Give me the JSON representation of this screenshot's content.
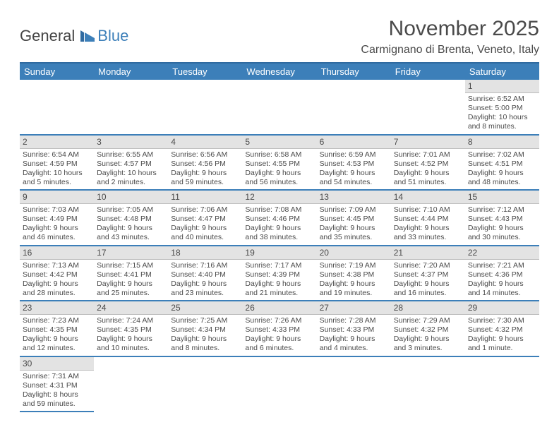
{
  "brand": {
    "part1": "General",
    "part2": "Blue"
  },
  "title": "November 2025",
  "location": "Carmignano di Brenta, Veneto, Italy",
  "headers": [
    "Sunday",
    "Monday",
    "Tuesday",
    "Wednesday",
    "Thursday",
    "Friday",
    "Saturday"
  ],
  "colors": {
    "accent": "#3c7fb9",
    "header_bg": "#3c7fb9",
    "daynum_bg": "#e3e3e3"
  },
  "weeks": [
    [
      null,
      null,
      null,
      null,
      null,
      null,
      {
        "n": "1",
        "sr": "6:52 AM",
        "ss": "5:00 PM",
        "dl": "10 hours and 8 minutes."
      }
    ],
    [
      {
        "n": "2",
        "sr": "6:54 AM",
        "ss": "4:59 PM",
        "dl": "10 hours and 5 minutes."
      },
      {
        "n": "3",
        "sr": "6:55 AM",
        "ss": "4:57 PM",
        "dl": "10 hours and 2 minutes."
      },
      {
        "n": "4",
        "sr": "6:56 AM",
        "ss": "4:56 PM",
        "dl": "9 hours and 59 minutes."
      },
      {
        "n": "5",
        "sr": "6:58 AM",
        "ss": "4:55 PM",
        "dl": "9 hours and 56 minutes."
      },
      {
        "n": "6",
        "sr": "6:59 AM",
        "ss": "4:53 PM",
        "dl": "9 hours and 54 minutes."
      },
      {
        "n": "7",
        "sr": "7:01 AM",
        "ss": "4:52 PM",
        "dl": "9 hours and 51 minutes."
      },
      {
        "n": "8",
        "sr": "7:02 AM",
        "ss": "4:51 PM",
        "dl": "9 hours and 48 minutes."
      }
    ],
    [
      {
        "n": "9",
        "sr": "7:03 AM",
        "ss": "4:49 PM",
        "dl": "9 hours and 46 minutes."
      },
      {
        "n": "10",
        "sr": "7:05 AM",
        "ss": "4:48 PM",
        "dl": "9 hours and 43 minutes."
      },
      {
        "n": "11",
        "sr": "7:06 AM",
        "ss": "4:47 PM",
        "dl": "9 hours and 40 minutes."
      },
      {
        "n": "12",
        "sr": "7:08 AM",
        "ss": "4:46 PM",
        "dl": "9 hours and 38 minutes."
      },
      {
        "n": "13",
        "sr": "7:09 AM",
        "ss": "4:45 PM",
        "dl": "9 hours and 35 minutes."
      },
      {
        "n": "14",
        "sr": "7:10 AM",
        "ss": "4:44 PM",
        "dl": "9 hours and 33 minutes."
      },
      {
        "n": "15",
        "sr": "7:12 AM",
        "ss": "4:43 PM",
        "dl": "9 hours and 30 minutes."
      }
    ],
    [
      {
        "n": "16",
        "sr": "7:13 AM",
        "ss": "4:42 PM",
        "dl": "9 hours and 28 minutes."
      },
      {
        "n": "17",
        "sr": "7:15 AM",
        "ss": "4:41 PM",
        "dl": "9 hours and 25 minutes."
      },
      {
        "n": "18",
        "sr": "7:16 AM",
        "ss": "4:40 PM",
        "dl": "9 hours and 23 minutes."
      },
      {
        "n": "19",
        "sr": "7:17 AM",
        "ss": "4:39 PM",
        "dl": "9 hours and 21 minutes."
      },
      {
        "n": "20",
        "sr": "7:19 AM",
        "ss": "4:38 PM",
        "dl": "9 hours and 19 minutes."
      },
      {
        "n": "21",
        "sr": "7:20 AM",
        "ss": "4:37 PM",
        "dl": "9 hours and 16 minutes."
      },
      {
        "n": "22",
        "sr": "7:21 AM",
        "ss": "4:36 PM",
        "dl": "9 hours and 14 minutes."
      }
    ],
    [
      {
        "n": "23",
        "sr": "7:23 AM",
        "ss": "4:35 PM",
        "dl": "9 hours and 12 minutes."
      },
      {
        "n": "24",
        "sr": "7:24 AM",
        "ss": "4:35 PM",
        "dl": "9 hours and 10 minutes."
      },
      {
        "n": "25",
        "sr": "7:25 AM",
        "ss": "4:34 PM",
        "dl": "9 hours and 8 minutes."
      },
      {
        "n": "26",
        "sr": "7:26 AM",
        "ss": "4:33 PM",
        "dl": "9 hours and 6 minutes."
      },
      {
        "n": "27",
        "sr": "7:28 AM",
        "ss": "4:33 PM",
        "dl": "9 hours and 4 minutes."
      },
      {
        "n": "28",
        "sr": "7:29 AM",
        "ss": "4:32 PM",
        "dl": "9 hours and 3 minutes."
      },
      {
        "n": "29",
        "sr": "7:30 AM",
        "ss": "4:32 PM",
        "dl": "9 hours and 1 minute."
      }
    ],
    [
      {
        "n": "30",
        "sr": "7:31 AM",
        "ss": "4:31 PM",
        "dl": "8 hours and 59 minutes."
      },
      null,
      null,
      null,
      null,
      null,
      null
    ]
  ]
}
